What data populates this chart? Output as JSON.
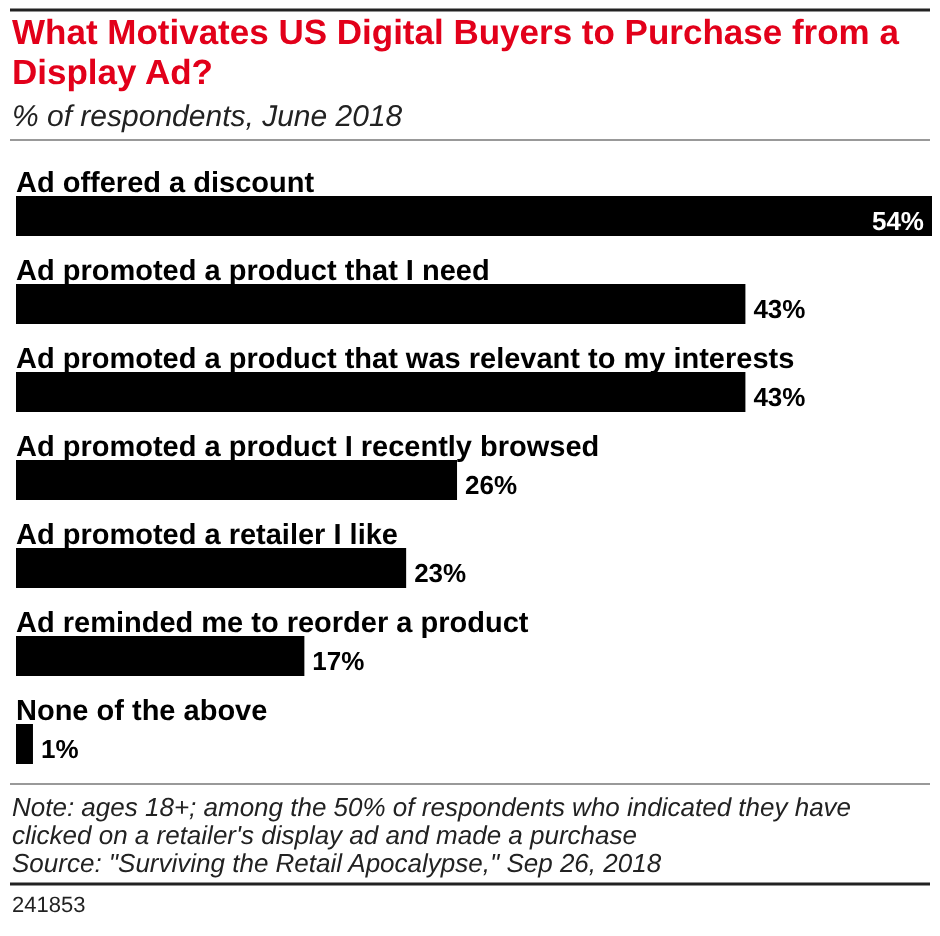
{
  "chart_data": {
    "type": "bar",
    "orientation": "horizontal",
    "title": "What Motivates US Digital Buyers to Purchase from a Display Ad?",
    "subtitle": "% of respondents, June 2018",
    "categories": [
      "Ad offered a discount",
      "Ad promoted a product that I need",
      "Ad promoted a product that was relevant to my interests",
      "Ad promoted a product I recently browsed",
      "Ad promoted a retailer I like",
      "Ad reminded me to reorder a product",
      "None of the above"
    ],
    "values": [
      54,
      43,
      43,
      26,
      23,
      17,
      1
    ],
    "value_labels": [
      "54%",
      "43%",
      "43%",
      "26%",
      "23%",
      "17%",
      "1%"
    ],
    "color": "#000000",
    "xlim": [
      0,
      54
    ],
    "annotations": [
      "Note: ages 18+; among the 50% of respondents who indicated they have clicked on a retailer's display ad and made a purchase",
      "Source: \"Surviving the Retail Apocalypse,\" Sep 26, 2018",
      "241853"
    ]
  }
}
